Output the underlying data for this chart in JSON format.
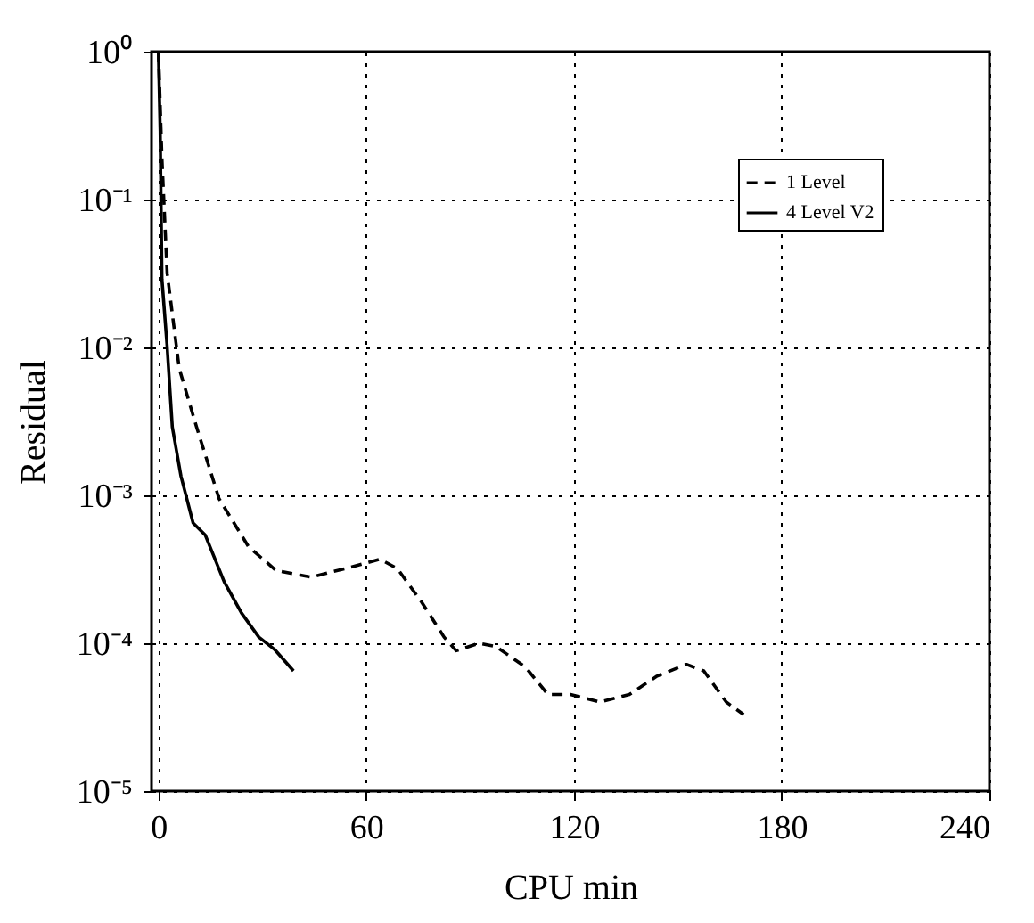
{
  "chart_data": {
    "type": "line",
    "xlabel": "CPU min",
    "ylabel": "Residual",
    "log": "y",
    "grid": true,
    "legend": "top right",
    "xlim": [
      -2,
      240
    ],
    "xticks": [
      0,
      60,
      120,
      180,
      240
    ],
    "ylim": [
      1e-05,
      1
    ],
    "yticks": [
      {
        "value": 1e-05,
        "label": "10⁻⁵"
      },
      {
        "value": 0.0001,
        "label": "10⁻⁴"
      },
      {
        "value": 0.001,
        "label": "10⁻³"
      },
      {
        "value": 0.01,
        "label": "10⁻²"
      },
      {
        "value": 0.1,
        "label": "10⁻¹"
      },
      {
        "value": 1,
        "label": "10⁰"
      }
    ],
    "series": [
      {
        "name": "1 Level",
        "color": "#000000",
        "line_style": "dashed",
        "x": [
          0,
          1,
          2.5,
          6,
          11,
          17.5,
          26,
          34,
          44,
          54,
          64,
          69,
          76,
          82.5,
          86,
          92.5,
          97.5,
          106,
          112.5,
          119,
          127.5,
          136,
          144,
          152.5,
          157.5,
          164,
          169
        ],
        "values": [
          1,
          0.19,
          0.032,
          0.0072,
          0.0029,
          0.00095,
          0.00045,
          0.00031,
          0.00028,
          0.00032,
          0.00037,
          0.00032,
          0.00019,
          0.00011,
          8.9e-05,
          0.0001,
          9.5e-05,
          6.9e-05,
          4.5e-05,
          4.5e-05,
          4e-05,
          4.5e-05,
          6e-05,
          7.2e-05,
          6.5e-05,
          4e-05,
          3.3e-05
        ]
      },
      {
        "name": "4 Level V2",
        "color": "#000000",
        "line_style": "solid",
        "x": [
          0,
          0.5,
          1,
          2.5,
          4,
          6.5,
          10,
          13.5,
          19,
          24,
          29,
          33.5,
          39
        ],
        "values": [
          1,
          0.29,
          0.029,
          0.0102,
          0.0029,
          0.00135,
          0.00065,
          0.00054,
          0.00026,
          0.00016,
          0.00011,
          9.1e-05,
          6.5e-05
        ]
      }
    ]
  }
}
